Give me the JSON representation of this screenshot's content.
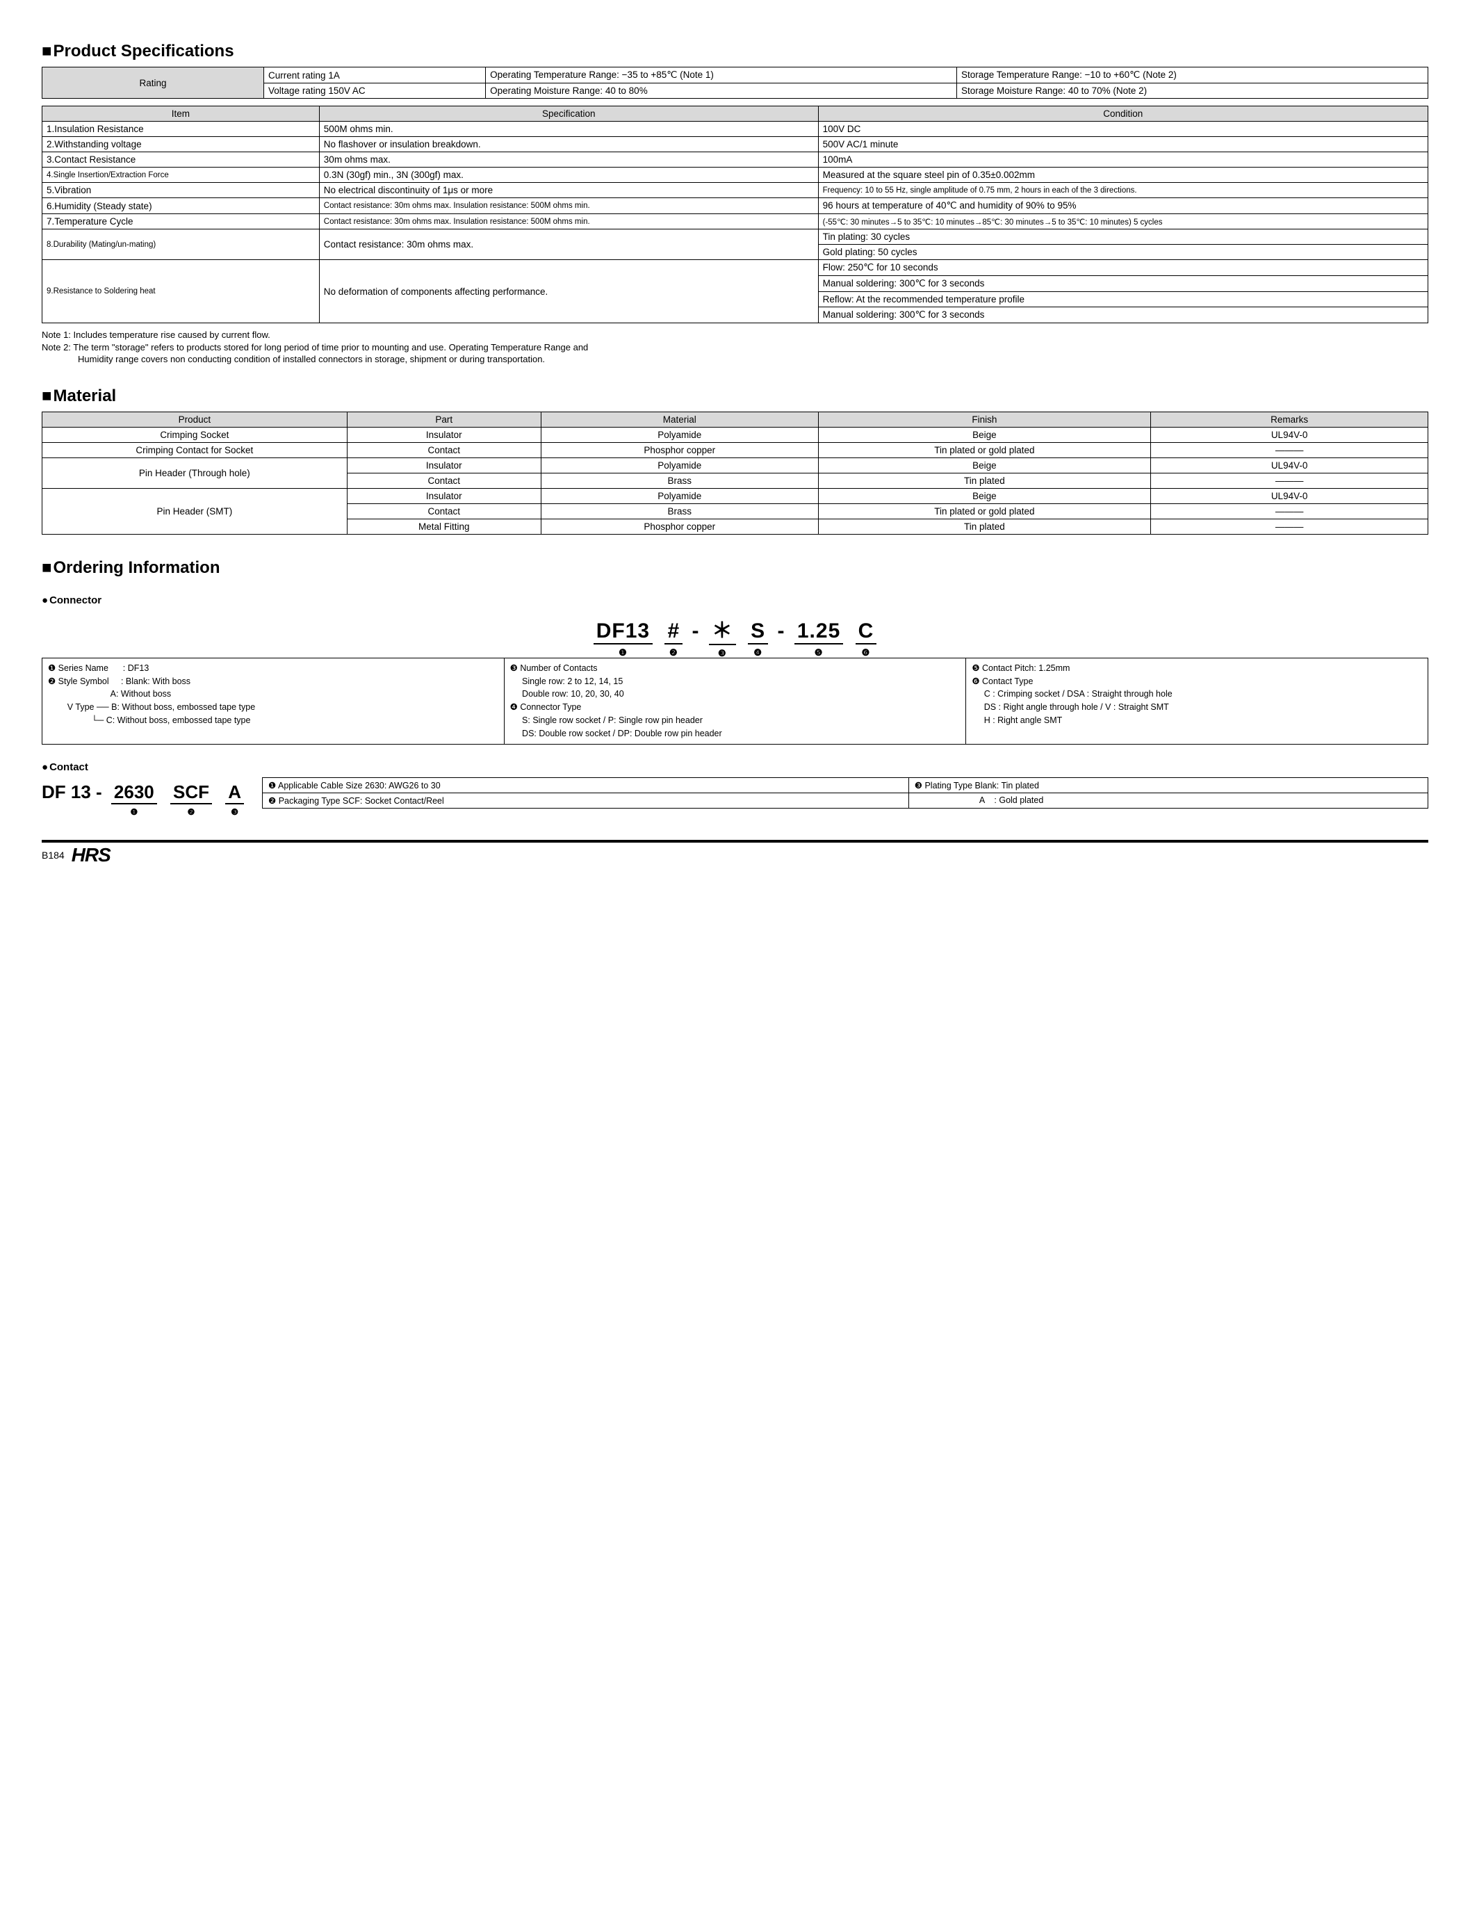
{
  "colors": {
    "header_bg": "#d9d9d9",
    "border": "#000000",
    "bg": "#ffffff",
    "text": "#000000"
  },
  "sections": {
    "spec_title": "Product Specifications",
    "material_title": "Material",
    "ordering_title": "Ordering Information",
    "connector_sub": "Connector",
    "contact_sub": "Contact"
  },
  "rating": {
    "label": "Rating",
    "current": "Current rating  1A",
    "voltage": "Voltage rating  150V AC",
    "op_temp": "Operating Temperature Range: −35 to +85℃ (Note 1)",
    "op_moist": "Operating Moisture Range: 40 to 80%",
    "st_temp": "Storage Temperature Range: −10 to +60℃ (Note 2)",
    "st_moist": "Storage Moisture Range: 40 to 70%        (Note 2)"
  },
  "spec_headers": {
    "item": "Item",
    "spec": "Specification",
    "cond": "Condition"
  },
  "specs": [
    {
      "item": "1.Insulation Resistance",
      "spec": "500M ohms min.",
      "cond": "100V DC"
    },
    {
      "item": "2.Withstanding voltage",
      "spec": "No flashover or insulation breakdown.",
      "cond": "500V AC/1 minute"
    },
    {
      "item": "3.Contact Resistance",
      "spec": "30m ohms max.",
      "cond": "100mA"
    },
    {
      "item": "4.Single Insertion/Extraction Force",
      "item_small": true,
      "spec": "0.3N (30gf) min., 3N (300gf) max.",
      "cond": "Measured at the square steel pin of 0.35±0.002mm"
    },
    {
      "item": "5.Vibration",
      "spec": "No electrical discontinuity of 1μs or more",
      "cond": "Frequency: 10 to 55 Hz, single amplitude of 0.75 mm, 2 hours in each of the 3 directions.",
      "cond_small": true
    },
    {
      "item": "6.Humidity (Steady state)",
      "spec": "Contact resistance: 30m ohms max. Insulation resistance: 500M ohms min.",
      "spec_small": true,
      "cond": "96 hours at temperature of 40℃ and humidity of 90% to 95%"
    },
    {
      "item": "7.Temperature Cycle",
      "spec": "Contact resistance: 30m ohms max. Insulation resistance: 500M ohms min.",
      "spec_small": true,
      "cond": "(-55℃: 30 minutes→5 to 35℃: 10 minutes→85℃: 30 minutes→5 to 35℃: 10 minutes) 5 cycles",
      "cond_small": true
    },
    {
      "item": "8.Durability (Mating/un-mating)",
      "item_small": true,
      "spec": "Contact resistance: 30m ohms max.",
      "cond": [
        "Tin plating: 30 cycles",
        "Gold plating: 50 cycles"
      ]
    },
    {
      "item": "9.Resistance to Soldering heat",
      "item_small": true,
      "spec": "No deformation of components affecting performance.",
      "cond": [
        "Flow: 250℃ for 10 seconds",
        "Manual soldering: 300℃ for 3 seconds",
        "Reflow: At the recommended temperature profile",
        "Manual soldering: 300℃ for 3 seconds"
      ]
    }
  ],
  "notes": {
    "n1": "Note 1: Includes temperature rise caused by current flow.",
    "n2a": "Note 2: The term \"storage\" refers to products stored for long period of time prior to mounting and use. Operating Temperature Range and",
    "n2b": "Humidity range covers non conducting condition of installed connectors in storage, shipment or during transportation."
  },
  "material_headers": {
    "product": "Product",
    "part": "Part",
    "material": "Material",
    "finish": "Finish",
    "remarks": "Remarks"
  },
  "material_rows": [
    {
      "product": "Crimping Socket",
      "rowspan": 1,
      "part": "Insulator",
      "material": "Polyamide",
      "finish": "Beige",
      "remarks": "UL94V-0"
    },
    {
      "product": "Crimping Contact for Socket",
      "rowspan": 1,
      "part": "Contact",
      "material": "Phosphor copper",
      "finish": "Tin plated or gold plated",
      "remarks": "―――"
    },
    {
      "product": "Pin Header (Through hole)",
      "rowspan": 2,
      "part": "Insulator",
      "material": "Polyamide",
      "finish": "Beige",
      "remarks": "UL94V-0"
    },
    {
      "part": "Contact",
      "material": "Brass",
      "finish": "Tin plated",
      "remarks": "―――"
    },
    {
      "product": "Pin Header (SMT)",
      "rowspan": 3,
      "part": "Insulator",
      "material": "Polyamide",
      "finish": "Beige",
      "remarks": "UL94V-0"
    },
    {
      "part": "Contact",
      "material": "Brass",
      "finish": "Tin plated or gold plated",
      "remarks": "―――"
    },
    {
      "part": "Metal Fitting",
      "material": "Phosphor copper",
      "finish": "Tin plated",
      "remarks": "―――"
    }
  ],
  "connector_code": {
    "p1": "DF13",
    "p2": "#",
    "p3": "＊",
    "p4": "S",
    "p5": "1.25",
    "p6": "C",
    "dash": "-"
  },
  "connector_legend": {
    "c1": [
      "❶ Series Name      : DF13",
      "❷ Style Symbol     : Blank: With boss",
      "                          A: Without boss",
      "        V Type ── B: Without boss, embossed tape type",
      "                  └─ C: Without boss, embossed tape type"
    ],
    "c2": [
      "❸ Number of Contacts",
      "     Single row: 2 to 12, 14, 15",
      "     Double row: 10, 20, 30, 40",
      "❹ Connector Type",
      "     S: Single row socket / P: Single row pin header",
      "     DS: Double row socket / DP: Double row pin header"
    ],
    "c3": [
      "❺ Contact Pitch: 1.25mm",
      "❻ Contact Type",
      "     C : Crimping socket / DSA : Straight through hole",
      "     DS : Right angle through hole / V : Straight SMT",
      "     H : Right angle SMT"
    ]
  },
  "contact_code": {
    "pre": "DF 13  -",
    "p1": "2630",
    "p2": "SCF",
    "p3": "A"
  },
  "contact_legend": {
    "r1c1": "❶ Applicable Cable Size  2630: AWG26 to 30",
    "r1c2": "❸ Plating Type    Blank: Tin plated",
    "r2c1": "❷ Packaging Type  SCF: Socket Contact/Reel",
    "r2c2": "                           A    : Gold plated"
  },
  "footer": {
    "page": "B184",
    "logo": "HRS"
  }
}
